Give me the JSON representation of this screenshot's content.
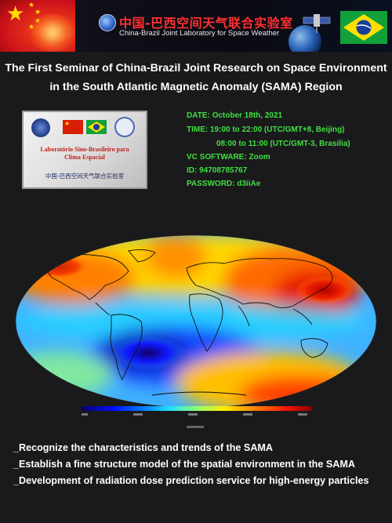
{
  "header": {
    "lab_name_cn": "中国-巴西空间天气联合实验室",
    "lab_name_en": "China-Brazil Joint Laboratory for Space Weather"
  },
  "title": {
    "line1": "The First Seminar of China-Brazil Joint Research on Space Environment",
    "line2": "in the South Atlantic Magnetic Anomaly (SAMA) Region"
  },
  "plaque": {
    "text_pt_line1": "Laboratório Sino-Brasileiro para",
    "text_pt_line2": "Clima Espacial",
    "text_cn": "中国-巴西空间天气联合实验室"
  },
  "event": {
    "date": "DATE:   October 18th, 2021",
    "time_beijing": "TIME:   19:00 to 22:00 (UTC/GMT+8, Beijing)",
    "time_brasilia": "08:00 to 11:00 (UTC/GMT-3, Brasilia)",
    "vc_software": "VC SOFTWARE:  Zoom",
    "meeting_id": "ID:    94708785767",
    "password": "PASSWORD:  d3iiAe"
  },
  "objectives": [
    "_Recognize the characteristics and trends of the SAMA",
    "_Establish a fine structure model of the spatial environment in the SAMA",
    "_Development of radiation dose prediction service for high-energy particles"
  ],
  "colors": {
    "background": "#1a1a1c",
    "info_green": "#3fe03f",
    "title_white": "#ffffff",
    "lab_red": "#ff3030"
  }
}
